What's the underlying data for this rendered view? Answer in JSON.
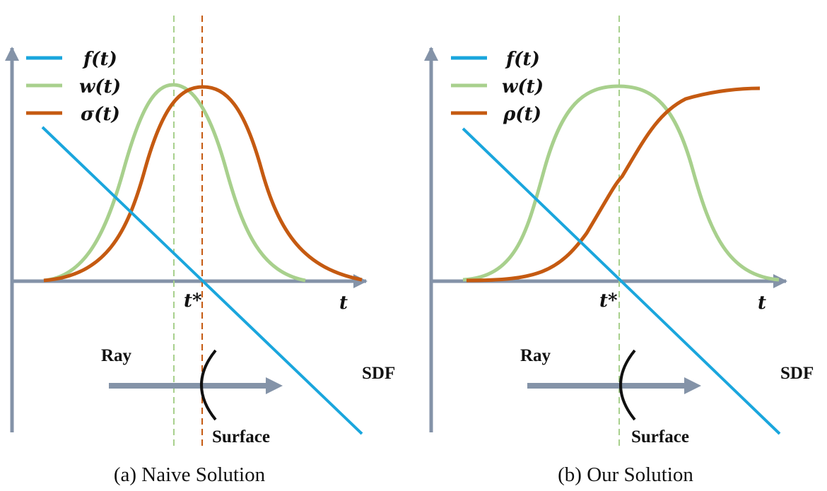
{
  "colors": {
    "axis": "#8493a8",
    "f": "#1aa6dd",
    "w": "#a8d08d",
    "sigma": "#c55a11",
    "rho": "#c55a11",
    "arrow": "#8493a8",
    "surface": "#111111"
  },
  "panel_a": {
    "caption": "(a) Naive Solution",
    "legend": {
      "f": "f(t)",
      "w": "w(t)",
      "second": "σ(t)"
    },
    "t_star": "t*",
    "t_axis": "t",
    "ray": "Ray",
    "sdf": "SDF",
    "surface": "Surface"
  },
  "panel_b": {
    "caption": "(b) Our Solution",
    "legend": {
      "f": "f(t)",
      "w": "w(t)",
      "second": "ρ(t)"
    },
    "t_star": "t*",
    "t_axis": "t",
    "ray": "Ray",
    "sdf": "SDF",
    "surface": "Surface"
  }
}
